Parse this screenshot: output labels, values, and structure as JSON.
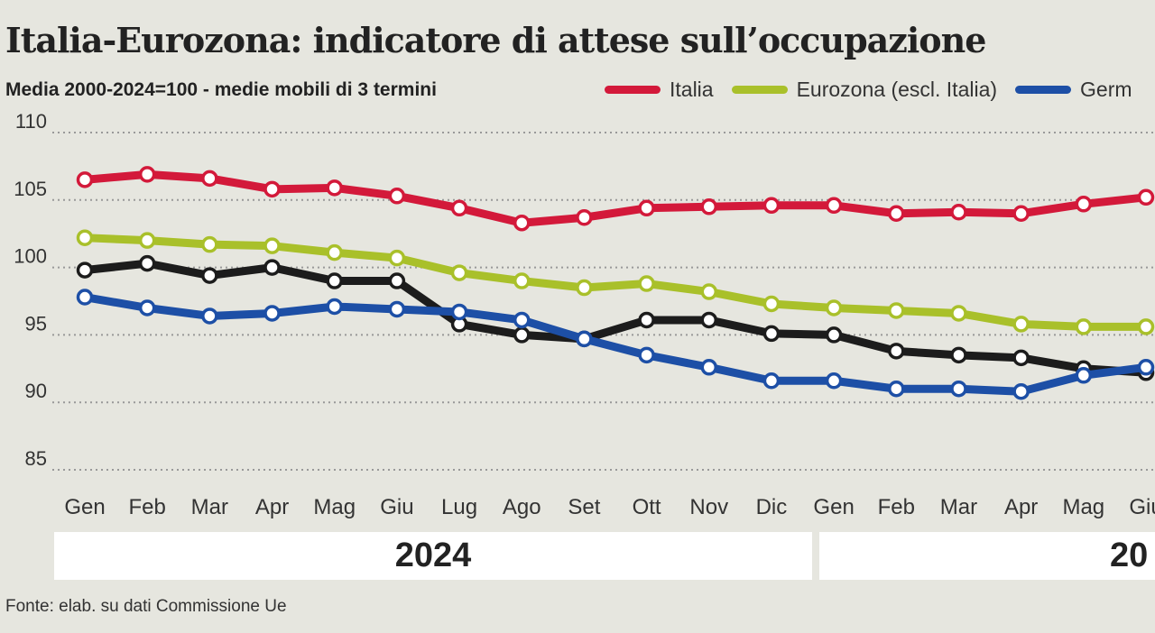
{
  "title": "Italia-Eurozona: indicatore di attese sull’occupazione",
  "subtitle": "Media 2000-2024=100 - medie mobili di 3 termini",
  "source": "Fonte: elab. su dati Commissione Ue",
  "years": [
    "2024",
    "20"
  ],
  "chart_data": {
    "type": "line",
    "title": "Italia-Eurozona: indicatore di attese sull’occupazione",
    "subtitle": "Media 2000-2024=100 - medie mobili di 3 termini",
    "categories": [
      "Gen",
      "Feb",
      "Mar",
      "Apr",
      "Mag",
      "Giu",
      "Lug",
      "Ago",
      "Set",
      "Ott",
      "Nov",
      "Dic",
      "Gen",
      "Feb",
      "Mar",
      "Apr",
      "Mag",
      "Giu"
    ],
    "yticks": [
      85,
      90,
      95,
      100,
      105,
      110
    ],
    "ylim": [
      85,
      110
    ],
    "grid": true,
    "legend_position": "top-right",
    "series": [
      {
        "name": "Italia",
        "color": "#d3193a",
        "values": [
          106.5,
          106.9,
          106.6,
          105.8,
          105.9,
          105.3,
          104.4,
          103.3,
          103.7,
          104.4,
          104.5,
          104.6,
          104.6,
          104.0,
          104.1,
          104.0,
          104.7,
          105.2
        ]
      },
      {
        "name": "Eurozona (escl. Italia)",
        "color": "#a9c02a",
        "values": [
          102.2,
          102.0,
          101.7,
          101.6,
          101.1,
          100.7,
          99.6,
          99.0,
          98.5,
          98.8,
          98.2,
          97.3,
          97.0,
          96.8,
          96.6,
          95.8,
          95.6,
          95.6
        ]
      },
      {
        "name": "Germ",
        "color": "#1d4fa6",
        "values": [
          97.8,
          97.0,
          96.4,
          96.6,
          97.1,
          96.9,
          96.7,
          96.1,
          94.7,
          93.5,
          92.6,
          91.6,
          91.6,
          91.0,
          91.0,
          90.8,
          92.0,
          92.6
        ]
      },
      {
        "color": "#1c1c1c",
        "values": [
          99.8,
          100.3,
          99.4,
          100.0,
          99.0,
          99.0,
          95.8,
          95.0,
          94.7,
          96.1,
          96.1,
          95.1,
          95.0,
          93.8,
          93.5,
          93.3,
          92.5,
          92.2
        ]
      }
    ]
  }
}
